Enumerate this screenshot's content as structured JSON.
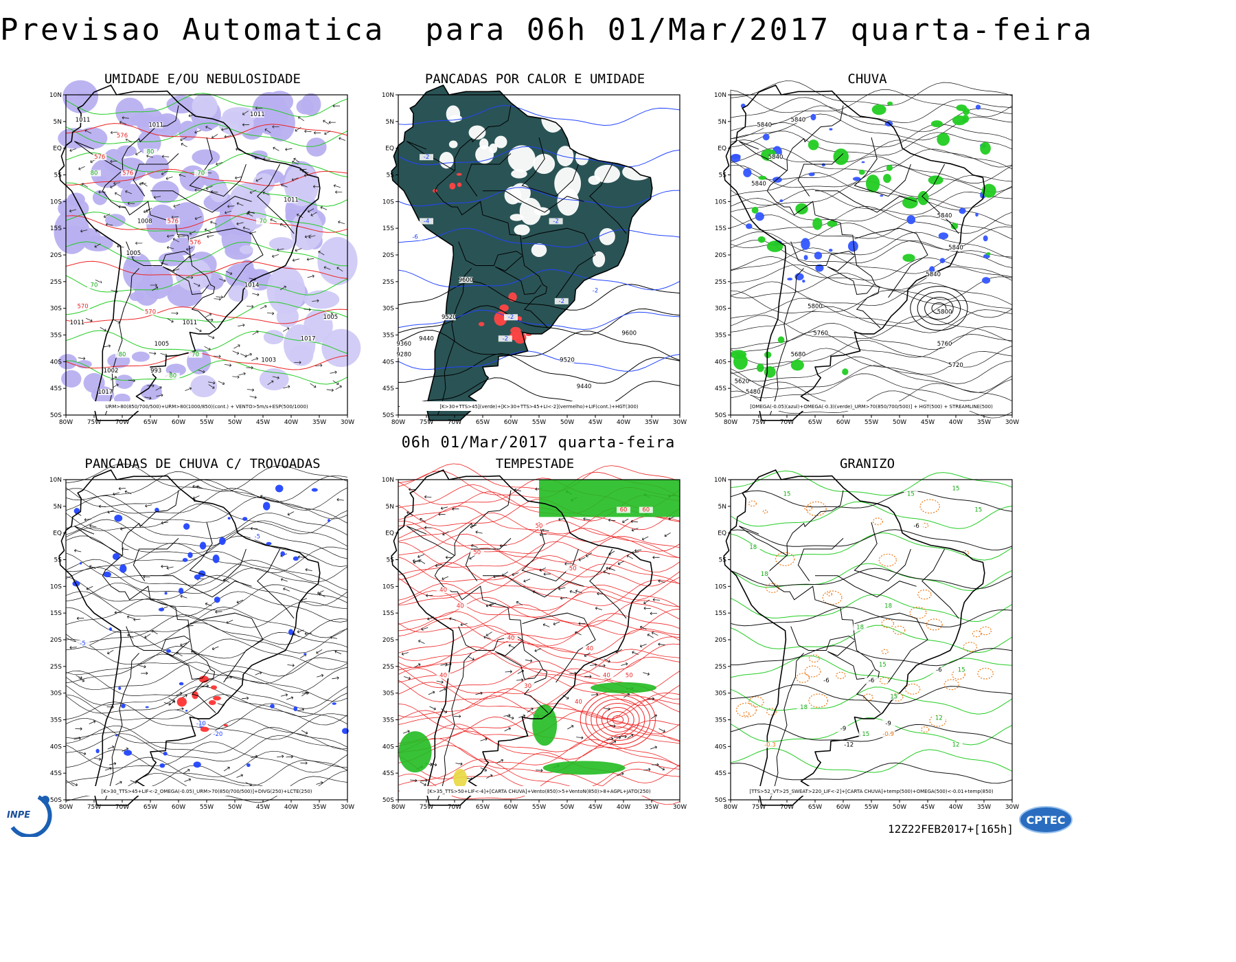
{
  "header": {
    "title": "Previsao Automatica  para 06h 01/Mar/2017 quarta-feira",
    "subtitle": "06h 01/Mar/2017 quarta-feira"
  },
  "axes": {
    "lat_labels": [
      "10N",
      "5N",
      "EQ",
      "5S",
      "10S",
      "15S",
      "20S",
      "25S",
      "30S",
      "35S",
      "40S",
      "45S",
      "50S"
    ],
    "lon_labels": [
      "80W",
      "75W",
      "70W",
      "65W",
      "60W",
      "55W",
      "50W",
      "45W",
      "40W",
      "35W",
      "30W"
    ]
  },
  "panels": [
    {
      "title": "UMIDADE E/OU NEBULOSIDADE",
      "legend": "URM>80(850/700/500)+URM>80(1000/850)(cont.) + VENTO>5m/s+ESP(500/1000)",
      "fill_color": "#b8b0f0",
      "labels": [
        "1011",
        "1011",
        "1011",
        "1011",
        "1008",
        "1005",
        "1005",
        "1003",
        "1011",
        "1014",
        "1017",
        "1017",
        "1011",
        "1005",
        "1002",
        "993",
        "576",
        "576",
        "576",
        "576",
        "576",
        "570",
        "570",
        "80",
        "80",
        "80",
        "80",
        "70",
        "70",
        "70",
        "70"
      ]
    },
    {
      "title": "PANCADAS POR CALOR E UMIDADE",
      "legend": "[K>30+TTS>45](verde)+[K>30+TTS>45+LI<-2](vermelho)+LIF(cont.)+HGT(300)",
      "fill_color": "#1f4a4c",
      "labels": [
        "9600",
        "9600",
        "9520",
        "9520",
        "9440",
        "9440",
        "9360",
        "9280",
        "-2",
        "-2",
        "-2",
        "-2",
        "-2",
        "-4",
        "-6",
        "-2"
      ]
    },
    {
      "title": "CHUVA",
      "legend": "[OMEGA(-0.05)(azul)+OMEGA(-0.3)(verde)_URM>70(850/700/500)] + HGT(500) + STREAMLINE(500)",
      "fill_color": "#22cc22",
      "labels": [
        "5840",
        "5840",
        "5840",
        "5840",
        "5840",
        "5840",
        "5840",
        "5800",
        "5760",
        "5800",
        "5680",
        "5760",
        "5720",
        "5620",
        "5480"
      ]
    },
    {
      "title": "PANCADAS DE CHUVA C/ TROVOADAS",
      "legend": "[K>30_TTS>45+LIF<-2_OMEGA(-0.05)_URM>70(850/700/500)]+DIVG(250)+LCTE(250)",
      "fill_color": "#2244ff",
      "labels": [
        "-5",
        "-5",
        "-10",
        "-20"
      ]
    },
    {
      "title": "TEMPESTADE",
      "legend": "[K>35_TTS>50+LIF<-4]+[CARTA CHUVA]+Vento(850)>5+VentoN(850)>8+AGPL+JATO(250)",
      "fill_color": "#22bb22",
      "labels": [
        "60",
        "60",
        "50",
        "40",
        "40",
        "40",
        "50",
        "40",
        "50",
        "40",
        "30",
        "40",
        "50",
        "40"
      ]
    },
    {
      "title": "GRANIZO",
      "legend": "[TTS>52_VT>25_SWEAT>220_LIF<-2]+[CARTA CHUVA]+temp(500)+OMEGA(500)<-0.01+temp(850)",
      "fill_color": "#ee7711",
      "labels": [
        "15",
        "15",
        "15",
        "18",
        "18",
        "18",
        "18",
        "15",
        "15",
        "15",
        "-6",
        "-6",
        "-9",
        "-6",
        "-9",
        "-12",
        "12",
        "12",
        "15",
        "-0.9",
        "-0.3",
        "18",
        "-6",
        "15"
      ]
    }
  ],
  "footer": {
    "run_code": "12Z22FEB2017+[165h]",
    "logo_inpe": "INPE",
    "logo_cptec": "CPTEC"
  }
}
